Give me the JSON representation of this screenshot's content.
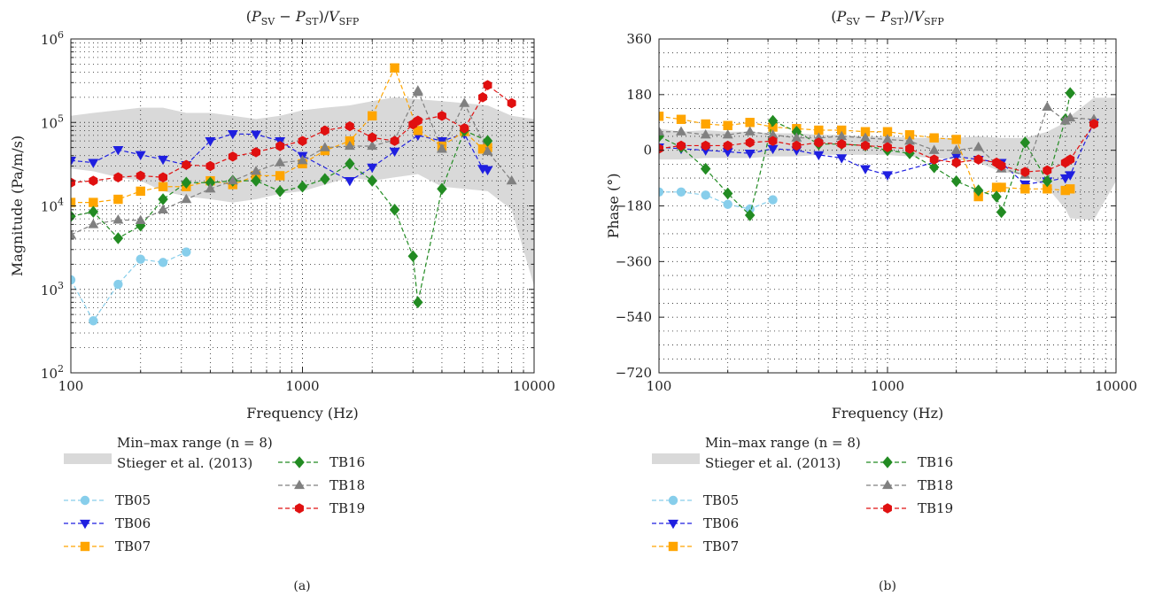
{
  "panels": [
    {
      "caption": "(a)",
      "chart_data": {
        "type": "line",
        "title_main": "(P",
        "title_parts": [
          "(",
          "P",
          "SV",
          " − ",
          "P",
          "ST",
          ")/",
          "V",
          "SFP"
        ],
        "xlabel": "Frequency (Hz)",
        "ylabel": "Magnitude (Pa/m/s)",
        "xscale": "log",
        "yscale": "log",
        "xlim": [
          100,
          10000
        ],
        "ylim": [
          100,
          1000000
        ],
        "xticks": [
          {
            "v": 100,
            "label": "100"
          },
          {
            "v": 1000,
            "label": "1000"
          },
          {
            "v": 10000,
            "label": "10000"
          }
        ],
        "yticks": [
          {
            "v": 100,
            "base": "10",
            "exp": "2"
          },
          {
            "v": 1000,
            "base": "10",
            "exp": "3"
          },
          {
            "v": 10000,
            "base": "10",
            "exp": "4"
          },
          {
            "v": 100000,
            "base": "10",
            "exp": "5"
          },
          {
            "v": 1000000,
            "base": "10",
            "exp": "6"
          }
        ],
        "grid": "dotted",
        "range_band": {
          "x": [
            100,
            125,
            160,
            200,
            250,
            315,
            400,
            500,
            630,
            800,
            1000,
            1250,
            1600,
            2000,
            2500,
            3150,
            4000,
            5000,
            6300,
            8000,
            10000
          ],
          "lower": [
            28000,
            26000,
            22000,
            20000,
            15000,
            13000,
            12000,
            11000,
            12000,
            14000,
            15000,
            18000,
            22000,
            20000,
            22000,
            24000,
            17000,
            16000,
            15000,
            9000,
            1100
          ],
          "upper": [
            120000,
            130000,
            140000,
            150000,
            150000,
            130000,
            130000,
            120000,
            110000,
            120000,
            140000,
            150000,
            160000,
            180000,
            200000,
            190000,
            180000,
            170000,
            160000,
            120000,
            110000
          ]
        },
        "series": [
          {
            "name": "TB05",
            "color": "#87ceeb",
            "marker": "circle",
            "x": [
              100,
              125,
              160,
              200,
              250,
              315
            ],
            "y": [
              1300,
              420,
              1150,
              2300,
              2100,
              2800
            ]
          },
          {
            "name": "TB06",
            "color": "#1f1fe0",
            "marker": "triangle-down",
            "x": [
              100,
              125,
              160,
              200,
              250,
              315,
              400,
              500,
              630,
              800,
              1000,
              1600,
              2000,
              2500,
              3150,
              4000,
              5000,
              6000,
              6300
            ],
            "y": [
              35000,
              33000,
              47000,
              41000,
              36000,
              31000,
              60000,
              73000,
              72000,
              60000,
              40000,
              20000,
              29000,
              45000,
              70000,
              60000,
              73000,
              28000,
              27000
            ]
          },
          {
            "name": "TB07",
            "color": "#ffa500",
            "marker": "square",
            "x": [
              100,
              125,
              160,
              200,
              250,
              315,
              400,
              500,
              630,
              800,
              1000,
              1250,
              1600,
              2000,
              2500,
              3150,
              4000,
              5000,
              6000,
              6300
            ],
            "y": [
              11000,
              11000,
              12000,
              15000,
              17000,
              17000,
              20000,
              18000,
              23000,
              23000,
              32000,
              46000,
              60000,
              120000,
              450000,
              80000,
              52000,
              78000,
              48000,
              50000
            ]
          },
          {
            "name": "TB16",
            "color": "#228b22",
            "marker": "diamond",
            "x": [
              100,
              125,
              160,
              200,
              250,
              315,
              400,
              500,
              630,
              800,
              1000,
              1250,
              1600,
              2000,
              2500,
              3000,
              3150,
              4000,
              5000,
              6300
            ],
            "y": [
              7500,
              8500,
              4100,
              5800,
              12000,
              19000,
              19000,
              20000,
              20000,
              15000,
              17000,
              21000,
              32000,
              20000,
              9000,
              2500,
              700,
              16000,
              80000,
              60000
            ]
          },
          {
            "name": "TB18",
            "color": "#808080",
            "marker": "triangle-up",
            "x": [
              100,
              125,
              160,
              200,
              250,
              315,
              400,
              500,
              630,
              800,
              1000,
              1250,
              1600,
              2000,
              2500,
              3150,
              3150,
              4000,
              5000,
              6300,
              8000
            ],
            "y": [
              4500,
              6000,
              6800,
              6700,
              9000,
              12000,
              16000,
              20000,
              26000,
              33000,
              35000,
              50000,
              52000,
              52000,
              62000,
              230000,
              240000,
              48000,
              170000,
              45000,
              20000
            ]
          },
          {
            "name": "TB19",
            "color": "#e01010",
            "marker": "hexagon",
            "x": [
              100,
              125,
              160,
              200,
              250,
              315,
              400,
              500,
              630,
              800,
              1000,
              1250,
              1600,
              2000,
              2500,
              3000,
              3150,
              4000,
              5000,
              6000,
              6300,
              8000
            ],
            "y": [
              19000,
              20000,
              22000,
              23000,
              22000,
              31000,
              30000,
              39000,
              44000,
              52000,
              60000,
              80000,
              90000,
              66000,
              60000,
              95000,
              105000,
              120000,
              85000,
              200000,
              280000,
              170000
            ]
          }
        ]
      },
      "legend": {
        "band_label_1": "Min–max range (n = 8)",
        "band_label_2": "Stieger et al. (2013)"
      }
    },
    {
      "caption": "(b)",
      "chart_data": {
        "type": "line",
        "title_parts": [
          "(",
          "P",
          "SV",
          " − ",
          "P",
          "ST",
          ")/",
          "V",
          "SFP"
        ],
        "xlabel": "Frequency (Hz)",
        "ylabel": "Phase (°)",
        "xscale": "log",
        "yscale": "linear",
        "xlim": [
          100,
          10000
        ],
        "ylim": [
          -720,
          360
        ],
        "xticks": [
          {
            "v": 100,
            "label": "100"
          },
          {
            "v": 1000,
            "label": "1000"
          },
          {
            "v": 10000,
            "label": "10000"
          }
        ],
        "yticks": [
          {
            "v": 360,
            "label": "360"
          },
          {
            "v": 180,
            "label": "180"
          },
          {
            "v": 0,
            "label": "0"
          },
          {
            "v": -180,
            "label": "−180"
          },
          {
            "v": -360,
            "label": "−360"
          },
          {
            "v": -540,
            "label": "−540"
          },
          {
            "v": -720,
            "label": "−720"
          }
        ],
        "grid": "dotted",
        "range_band": {
          "x": [
            100,
            125,
            160,
            200,
            250,
            315,
            400,
            500,
            630,
            800,
            1000,
            1250,
            1600,
            2000,
            2500,
            3150,
            4000,
            5000,
            6000,
            6300,
            8000,
            10000
          ],
          "lower": [
            -30,
            -30,
            -25,
            -25,
            -25,
            -20,
            -20,
            -15,
            -15,
            -15,
            -15,
            -20,
            -25,
            -30,
            -40,
            -70,
            -80,
            -120,
            -190,
            -220,
            -225,
            -100
          ],
          "upper": [
            70,
            60,
            65,
            60,
            60,
            55,
            55,
            50,
            50,
            45,
            45,
            40,
            40,
            40,
            45,
            40,
            40,
            60,
            90,
            110,
            170,
            170
          ]
        },
        "series": [
          {
            "name": "TB05",
            "color": "#87ceeb",
            "marker": "circle",
            "x": [
              100,
              125,
              160,
              200,
              250,
              315
            ],
            "y": [
              -135,
              -135,
              -145,
              -175,
              -190,
              -160
            ]
          },
          {
            "name": "TB06",
            "color": "#1f1fe0",
            "marker": "triangle-down",
            "x": [
              100,
              125,
              160,
              200,
              250,
              315,
              400,
              500,
              630,
              800,
              1000,
              2000,
              2500,
              3150,
              4000,
              5000,
              6000,
              6300,
              8000
            ],
            "y": [
              10,
              5,
              0,
              -5,
              -10,
              5,
              0,
              -15,
              -25,
              -60,
              -80,
              -20,
              -30,
              -40,
              -110,
              -100,
              -90,
              -80,
              90
            ]
          },
          {
            "name": "TB07",
            "color": "#ffa500",
            "marker": "square",
            "x": [
              100,
              125,
              160,
              200,
              250,
              315,
              400,
              500,
              630,
              800,
              1000,
              1250,
              1600,
              2000,
              2500,
              3000,
              3150,
              4000,
              5000,
              6000,
              6300
            ],
            "y": [
              110,
              100,
              85,
              80,
              90,
              75,
              70,
              65,
              65,
              60,
              60,
              50,
              40,
              35,
              -150,
              -120,
              -120,
              -125,
              -125,
              -130,
              -125
            ]
          },
          {
            "name": "TB16",
            "color": "#228b22",
            "marker": "diamond",
            "x": [
              100,
              125,
              160,
              200,
              250,
              315,
              400,
              500,
              630,
              800,
              1000,
              1250,
              1600,
              2000,
              2500,
              3000,
              3150,
              4000,
              5000,
              6000,
              6300
            ],
            "y": [
              45,
              10,
              -60,
              -140,
              -210,
              95,
              60,
              20,
              20,
              15,
              0,
              -10,
              -55,
              -100,
              -130,
              -150,
              -200,
              25,
              -100,
              100,
              185
            ]
          },
          {
            "name": "TB18",
            "color": "#808080",
            "marker": "triangle-up",
            "x": [
              100,
              125,
              160,
              200,
              250,
              315,
              400,
              500,
              630,
              800,
              1000,
              1250,
              1600,
              2000,
              2500,
              3150,
              4000,
              5000,
              6000,
              6300,
              8000
            ],
            "y": [
              60,
              60,
              50,
              50,
              60,
              50,
              40,
              40,
              45,
              40,
              35,
              30,
              0,
              0,
              10,
              -60,
              -80,
              140,
              95,
              105,
              100
            ]
          },
          {
            "name": "TB19",
            "color": "#e01010",
            "marker": "hexagon",
            "x": [
              100,
              125,
              160,
              200,
              250,
              315,
              400,
              500,
              630,
              800,
              1000,
              1250,
              1600,
              2000,
              2500,
              3000,
              3150,
              4000,
              5000,
              6000,
              6300,
              8000
            ],
            "y": [
              5,
              15,
              15,
              15,
              25,
              30,
              15,
              25,
              20,
              15,
              10,
              5,
              -30,
              -40,
              -30,
              -40,
              -50,
              -70,
              -65,
              -40,
              -30,
              85
            ]
          }
        ]
      },
      "legend": {
        "band_label_1": "Min–max range (n = 8)",
        "band_label_2": "Stieger et al. (2013)"
      }
    }
  ],
  "colors": {
    "band": "#d9d9d9",
    "grid": "#222222",
    "axis": "#222222"
  }
}
